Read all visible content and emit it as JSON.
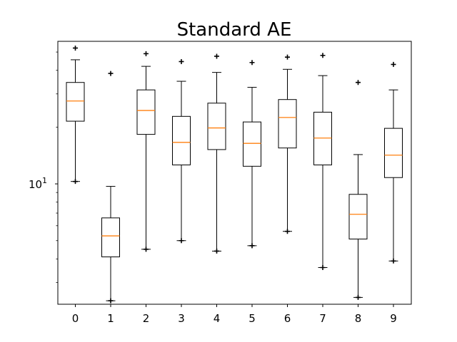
{
  "chart_data": {
    "type": "box",
    "title": "Standard AE",
    "xlabel": "",
    "ylabel": "",
    "y_scale": "log",
    "ylim": [
      2.3,
      57
    ],
    "ytick_labels": [
      {
        "value": 10,
        "label": "10^1"
      }
    ],
    "categories": [
      "0",
      "1",
      "2",
      "3",
      "4",
      "5",
      "6",
      "7",
      "8",
      "9"
    ],
    "boxes": [
      {
        "category": "0",
        "whisker_low": 10.3,
        "q1": 21.5,
        "median": 27.5,
        "q3": 34.5,
        "whisker_high": 45.5,
        "fliers": [
          10.3,
          52.5
        ]
      },
      {
        "category": "1",
        "whisker_low": 2.4,
        "q1": 4.1,
        "median": 5.3,
        "q3": 6.6,
        "whisker_high": 9.7,
        "fliers": [
          2.4,
          38.5
        ]
      },
      {
        "category": "2",
        "whisker_low": 4.5,
        "q1": 18.3,
        "median": 24.5,
        "q3": 31.5,
        "whisker_high": 42.0,
        "fliers": [
          4.5,
          49.0
        ]
      },
      {
        "category": "3",
        "whisker_low": 5.0,
        "q1": 12.6,
        "median": 16.6,
        "q3": 22.8,
        "whisker_high": 35.0,
        "fliers": [
          5.0,
          44.5
        ]
      },
      {
        "category": "4",
        "whisker_low": 4.4,
        "q1": 15.2,
        "median": 19.8,
        "q3": 26.8,
        "whisker_high": 39.0,
        "fliers": [
          4.4,
          47.5
        ]
      },
      {
        "category": "5",
        "whisker_low": 4.7,
        "q1": 12.4,
        "median": 16.4,
        "q3": 21.3,
        "whisker_high": 32.5,
        "fliers": [
          4.7,
          44.0
        ]
      },
      {
        "category": "6",
        "whisker_low": 5.6,
        "q1": 15.5,
        "median": 22.5,
        "q3": 28.0,
        "whisker_high": 40.5,
        "fliers": [
          5.6,
          47.0
        ]
      },
      {
        "category": "7",
        "whisker_low": 3.6,
        "q1": 12.6,
        "median": 17.5,
        "q3": 24.0,
        "whisker_high": 37.5,
        "fliers": [
          3.6,
          48.0
        ]
      },
      {
        "category": "8",
        "whisker_low": 2.5,
        "q1": 5.1,
        "median": 6.9,
        "q3": 8.8,
        "whisker_high": 14.3,
        "fliers": [
          2.5,
          34.5
        ]
      },
      {
        "category": "9",
        "whisker_low": 3.9,
        "q1": 10.8,
        "median": 14.2,
        "q3": 19.7,
        "whisker_high": 31.5,
        "fliers": [
          3.9,
          43.0
        ]
      }
    ],
    "grid": false,
    "legend": "none"
  },
  "colors": {
    "box": "#000000",
    "median": "#ff7f0e",
    "background": "#ffffff"
  }
}
